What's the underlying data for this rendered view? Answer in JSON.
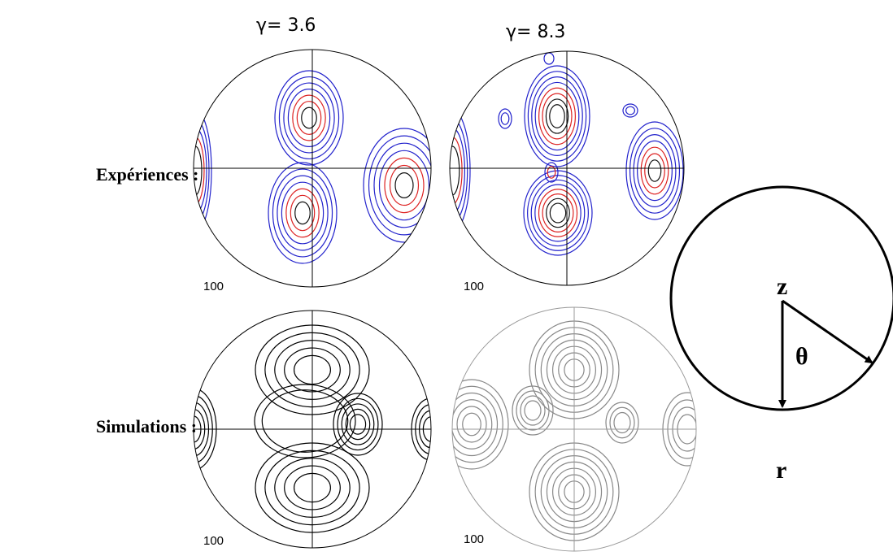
{
  "column_headers": [
    "γ= 3.6",
    "γ= 8.3"
  ],
  "row_labels": [
    "Expériences :",
    "Simulations :"
  ],
  "pole_figures": [
    {
      "label": "100"
    },
    {
      "label": "100"
    },
    {
      "label": "100"
    },
    {
      "label": "100"
    }
  ],
  "schematic": {
    "center": "z",
    "angle": "θ",
    "radial": "r"
  }
}
